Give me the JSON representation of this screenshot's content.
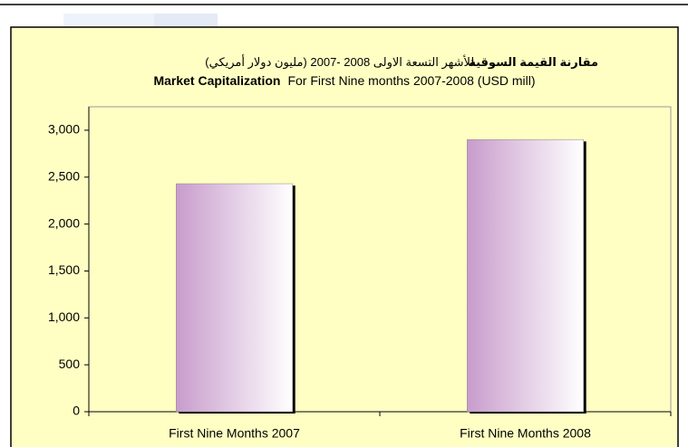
{
  "chart_data": {
    "type": "bar",
    "title": [
      {
        "bold": "مقارنة القيمة السوقية",
        "text": "للأشهر التسعة الاولى 2008 -2007 (مليون دولار أمريكي)"
      },
      {
        "bold": "Market Capitalization",
        "text": "For First  Nine months 2007-2008 (USD mill)"
      }
    ],
    "categories": [
      "First Nine Months 2007",
      "First Nine Months 2008"
    ],
    "values": [
      2430,
      2900
    ],
    "color": "#c89ccc",
    "ylim": [
      0,
      3250
    ],
    "yticks": [
      0,
      {
        "value": 500,
        "label": "500"
      },
      {
        "value": 1000,
        "label": "1,000"
      },
      {
        "value": 1500,
        "label": "1,500"
      },
      {
        "value": 2000,
        "label": "2,000"
      },
      {
        "value": 2500,
        "label": "2,500"
      },
      {
        "value": 3000,
        "label": "3,000"
      }
    ],
    "grid": false
  }
}
